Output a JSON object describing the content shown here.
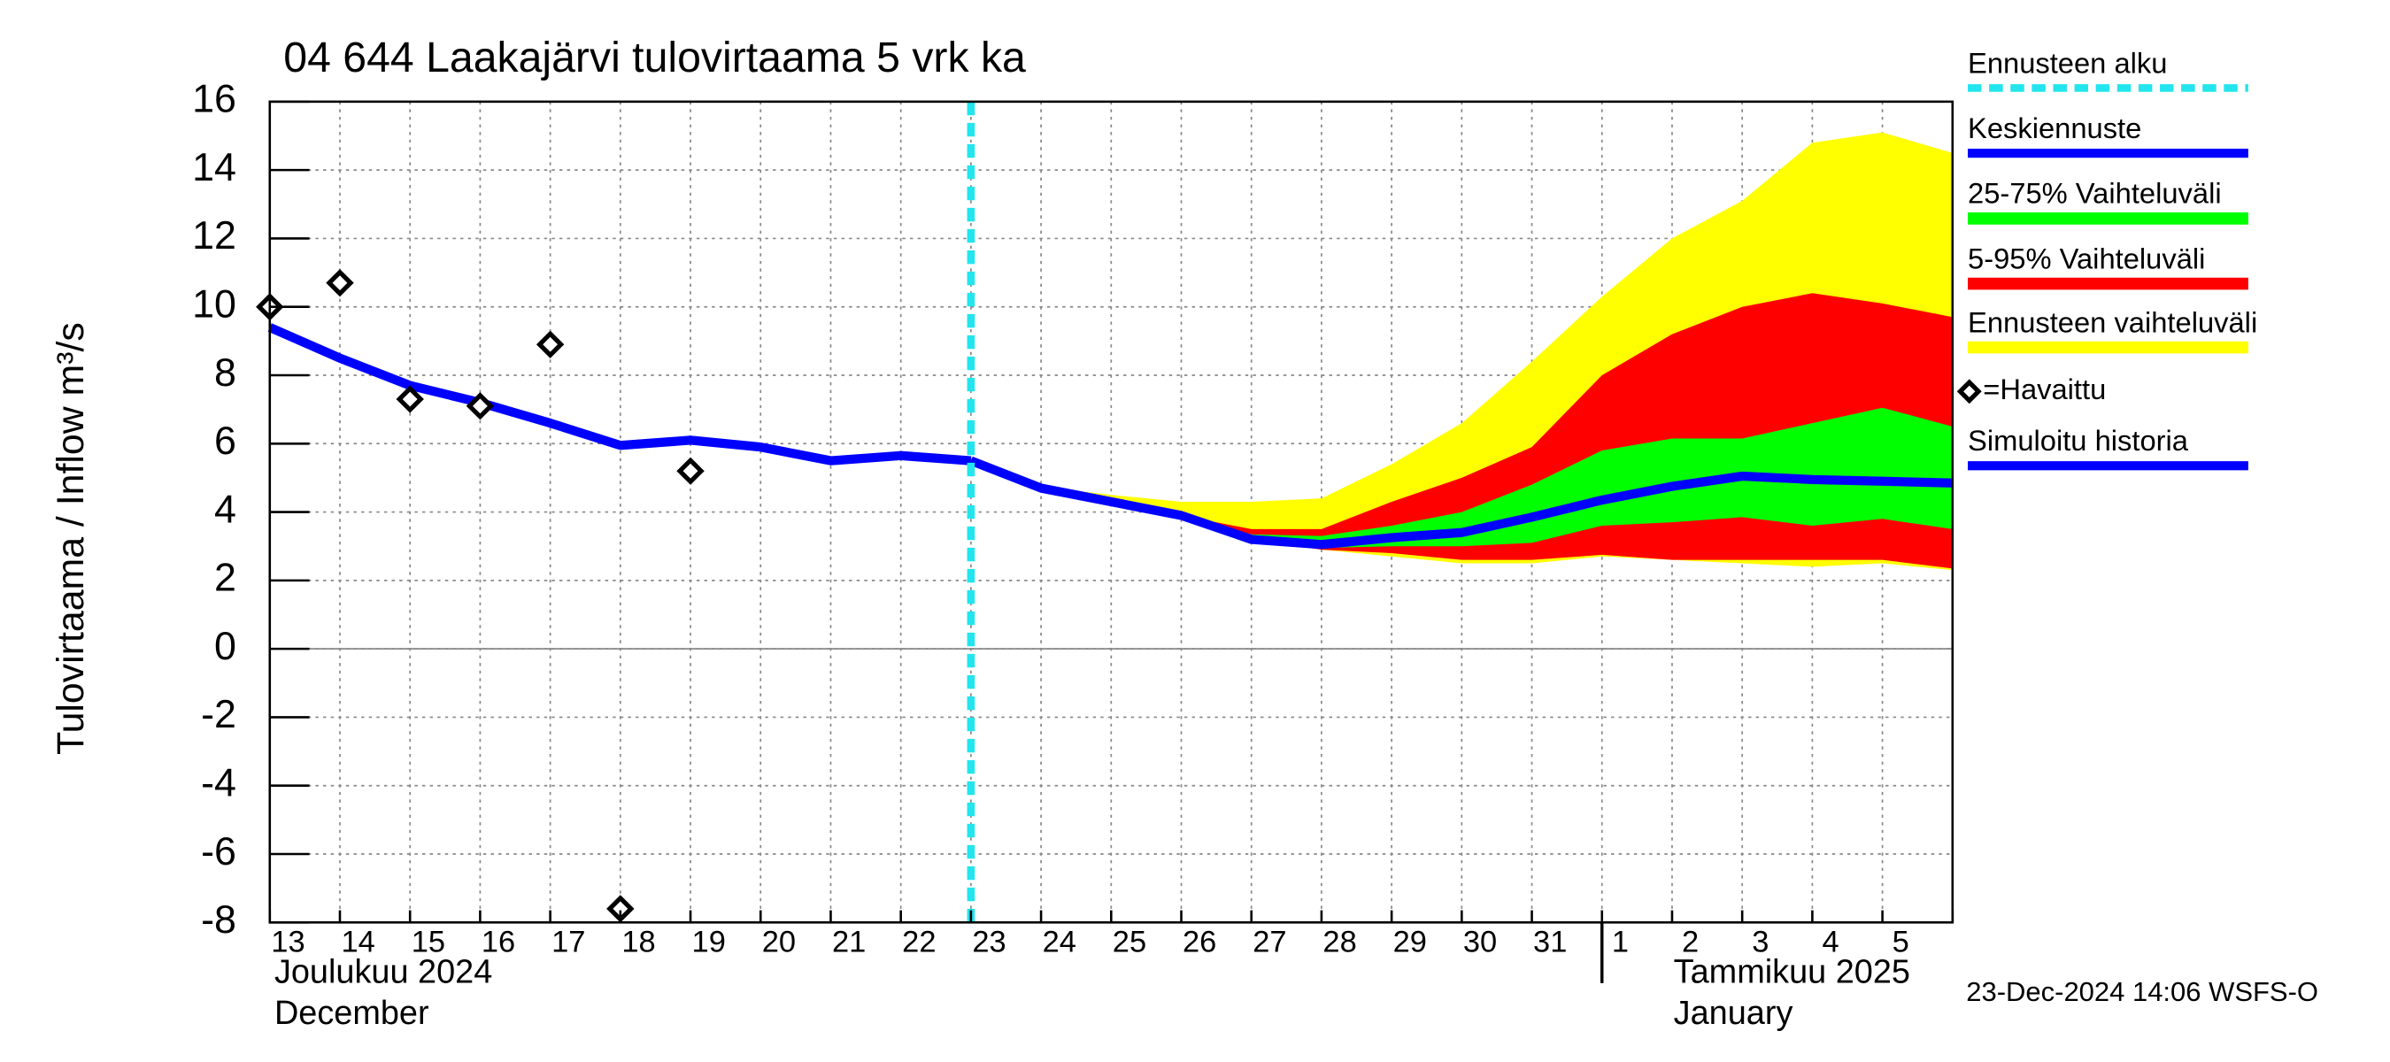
{
  "chart_data": {
    "type": "forecast",
    "title": "04 644 Laakajärvi tulovirtaama 5 vrk ka",
    "y_label": "Tulovirtaama / Inflow    m³/s",
    "categories": [
      "13",
      "14",
      "15",
      "16",
      "17",
      "18",
      "19",
      "20",
      "21",
      "22",
      "23",
      "24",
      "25",
      "26",
      "27",
      "28",
      "29",
      "30",
      "31",
      "1",
      "2",
      "3",
      "4",
      "5",
      null
    ],
    "month_labels": [
      "Joulukuu  2024",
      "December",
      "Tammikuu  2025",
      "January"
    ],
    "footer": "23-Dec-2024 14:06 WSFS-O",
    "ylim": [
      -8,
      16
    ],
    "yticks": [
      -8,
      -6,
      -4,
      -2,
      0,
      2,
      4,
      6,
      8,
      10,
      12,
      14,
      16
    ],
    "grid": true,
    "forecast_start": {
      "name": "Ennusteen alku",
      "color": "#22e5ee",
      "x": 10
    },
    "series": [
      {
        "name": "Ennusteen vaihteluväli",
        "color": "#ffff00",
        "kind": "band",
        "values": [
          null,
          null,
          null,
          null,
          null,
          null,
          null,
          null,
          null,
          null,
          5.5,
          4.75,
          4.5,
          4.3,
          4.3,
          4.4,
          5.4,
          6.6,
          8.4,
          10.3,
          12.0,
          13.1,
          14.8,
          15.1,
          14.5
        ],
        "lower": [
          null,
          null,
          null,
          null,
          null,
          null,
          null,
          null,
          null,
          null,
          5.5,
          4.7,
          4.3,
          3.85,
          3.2,
          2.9,
          2.7,
          2.5,
          2.5,
          2.7,
          2.6,
          2.5,
          2.4,
          2.5,
          2.3
        ]
      },
      {
        "name": "5-95% Vaihteluväli",
        "color": "#ff0000",
        "kind": "band",
        "values": [
          null,
          null,
          null,
          null,
          null,
          null,
          null,
          null,
          null,
          null,
          5.5,
          4.7,
          4.35,
          3.9,
          3.5,
          3.5,
          4.3,
          5.0,
          5.9,
          8.0,
          9.2,
          10.0,
          10.4,
          10.1,
          9.7
        ],
        "lower": [
          null,
          null,
          null,
          null,
          null,
          null,
          null,
          null,
          null,
          null,
          5.5,
          4.7,
          4.3,
          3.85,
          3.2,
          2.9,
          2.8,
          2.6,
          2.6,
          2.75,
          2.6,
          2.6,
          2.6,
          2.6,
          2.35
        ]
      },
      {
        "name": "25-75% Vaihteluväli",
        "color": "#00ff00",
        "kind": "band",
        "values": [
          null,
          null,
          null,
          null,
          null,
          null,
          null,
          null,
          null,
          null,
          5.5,
          4.7,
          4.3,
          3.9,
          3.35,
          3.3,
          3.6,
          4.0,
          4.8,
          5.8,
          6.15,
          6.15,
          6.6,
          7.05,
          6.5
        ],
        "lower": [
          null,
          null,
          null,
          null,
          null,
          null,
          null,
          null,
          null,
          null,
          5.5,
          4.7,
          4.3,
          3.85,
          3.2,
          2.95,
          3.0,
          3.0,
          3.1,
          3.6,
          3.7,
          3.85,
          3.6,
          3.8,
          3.5
        ]
      },
      {
        "name": "Keskiennuste",
        "color": "#0000ff",
        "kind": "line",
        "values": [
          null,
          null,
          null,
          null,
          null,
          null,
          null,
          null,
          null,
          null,
          5.5,
          4.7,
          4.3,
          3.9,
          3.2,
          3.05,
          3.25,
          3.4,
          3.85,
          4.35,
          4.75,
          5.05,
          4.95,
          4.9,
          4.85
        ]
      },
      {
        "name": "Simuloitu historia",
        "color": "#0000ff",
        "kind": "line",
        "values": [
          9.4,
          8.5,
          7.7,
          7.2,
          6.6,
          5.95,
          6.1,
          5.9,
          5.5,
          5.65,
          5.5,
          null,
          null,
          null,
          null,
          null,
          null,
          null,
          null,
          null,
          null,
          null,
          null,
          null,
          null
        ]
      },
      {
        "name": "=Havaittu",
        "color": "#000000",
        "kind": "marker",
        "values": [
          10.0,
          10.7,
          7.3,
          7.1,
          8.9,
          -7.6,
          5.2,
          null,
          null,
          null,
          null,
          null,
          null,
          null,
          null,
          null,
          null,
          null,
          null,
          null,
          null,
          null,
          null,
          null,
          null
        ]
      }
    ]
  }
}
